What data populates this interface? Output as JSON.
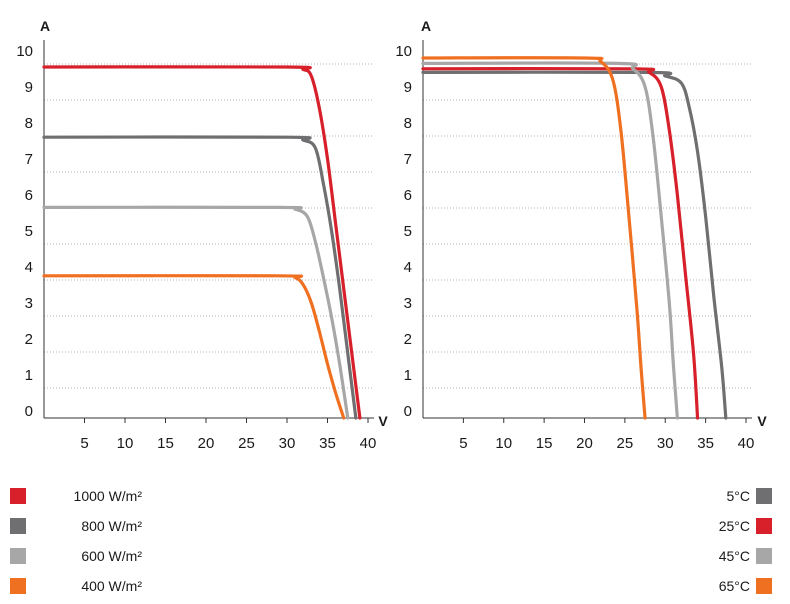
{
  "chart_data": [
    {
      "type": "line",
      "ylabel": "A",
      "xlabel": "V",
      "xlim": [
        0,
        40
      ],
      "ylim": [
        0,
        10
      ],
      "x_ticks": [
        "5",
        "10",
        "15",
        "20",
        "25",
        "30",
        "35",
        "40"
      ],
      "y_ticks": [
        "10",
        "9",
        "8",
        "7",
        "6",
        "5",
        "4",
        "3",
        "2",
        "1",
        "0"
      ],
      "grid": "horizontal dotted",
      "series": [
        {
          "name": "1000 W/m²",
          "color": "#d7202a",
          "points": [
            [
              0,
              9.75
            ],
            [
              30,
              9.75
            ],
            [
              32,
              9.68
            ],
            [
              33,
              9.5
            ],
            [
              34,
              8.6
            ],
            [
              35,
              7.2
            ],
            [
              36,
              5.4
            ],
            [
              37,
              3.6
            ],
            [
              38,
              1.8
            ],
            [
              39,
              0
            ]
          ]
        },
        {
          "name": "800 W/m²",
          "color": "#6f6f71",
          "points": [
            [
              0,
              7.8
            ],
            [
              30,
              7.8
            ],
            [
              32,
              7.72
            ],
            [
              33.5,
              7.5
            ],
            [
              34.5,
              6.5
            ],
            [
              35.5,
              5.2
            ],
            [
              36.5,
              3.6
            ],
            [
              37.5,
              1.8
            ],
            [
              38.5,
              0
            ]
          ]
        },
        {
          "name": "600 W/m²",
          "color": "#a7a7a8",
          "points": [
            [
              0,
              5.85
            ],
            [
              29,
              5.85
            ],
            [
              31,
              5.8
            ],
            [
              32.5,
              5.6
            ],
            [
              33.5,
              4.9
            ],
            [
              34.5,
              3.9
            ],
            [
              35.5,
              2.8
            ],
            [
              36.5,
              1.5
            ],
            [
              37.5,
              0
            ]
          ]
        },
        {
          "name": "400 W/m²",
          "color": "#f07022",
          "points": [
            [
              0,
              3.95
            ],
            [
              29,
              3.95
            ],
            [
              31,
              3.9
            ],
            [
              32,
              3.7
            ],
            [
              33,
              3.2
            ],
            [
              34,
              2.4
            ],
            [
              35,
              1.5
            ],
            [
              36,
              0.7
            ],
            [
              37,
              0
            ]
          ]
        }
      ]
    },
    {
      "type": "line",
      "ylabel": "A",
      "xlabel": "V",
      "xlim": [
        0,
        40
      ],
      "ylim": [
        0,
        10
      ],
      "x_ticks": [
        "5",
        "10",
        "15",
        "20",
        "25",
        "30",
        "35",
        "40"
      ],
      "y_ticks": [
        "10",
        "9",
        "8",
        "7",
        "6",
        "5",
        "4",
        "3",
        "2",
        "1",
        "0"
      ],
      "grid": "horizontal dotted",
      "series": [
        {
          "name": "5°C",
          "color": "#6f6f71",
          "points": [
            [
              0,
              9.6
            ],
            [
              28,
              9.6
            ],
            [
              30,
              9.5
            ],
            [
              32,
              9.3
            ],
            [
              33,
              8.6
            ],
            [
              34,
              7.4
            ],
            [
              35,
              5.6
            ],
            [
              36,
              3.4
            ],
            [
              37,
              1.4
            ],
            [
              37.5,
              0
            ]
          ]
        },
        {
          "name": "25°C",
          "color": "#d7202a",
          "points": [
            [
              0,
              9.7
            ],
            [
              26,
              9.7
            ],
            [
              28,
              9.6
            ],
            [
              29.5,
              9.2
            ],
            [
              30.5,
              8.0
            ],
            [
              31.5,
              6.2
            ],
            [
              32.5,
              4.0
            ],
            [
              33.5,
              1.8
            ],
            [
              34,
              0
            ]
          ]
        },
        {
          "name": "45°C",
          "color": "#a7a7a8",
          "points": [
            [
              0,
              9.85
            ],
            [
              24,
              9.85
            ],
            [
              26,
              9.7
            ],
            [
              27.5,
              9.2
            ],
            [
              28.5,
              7.8
            ],
            [
              29.5,
              5.6
            ],
            [
              30.5,
              3.2
            ],
            [
              31,
              1.5
            ],
            [
              31.5,
              0
            ]
          ]
        },
        {
          "name": "65°C",
          "color": "#f07022",
          "points": [
            [
              0,
              10.0
            ],
            [
              20,
              10.0
            ],
            [
              22,
              9.9
            ],
            [
              23.5,
              9.4
            ],
            [
              24.5,
              8.0
            ],
            [
              25.5,
              5.6
            ],
            [
              26.5,
              3.0
            ],
            [
              27,
              1.4
            ],
            [
              27.5,
              0
            ]
          ]
        }
      ]
    }
  ],
  "legend_left": [
    {
      "label": "1000 W/m²",
      "color": "#d7202a"
    },
    {
      "label": "800 W/m²",
      "color": "#6f6f71"
    },
    {
      "label": "600 W/m²",
      "color": "#a7a7a8"
    },
    {
      "label": "400 W/m²",
      "color": "#f07022"
    }
  ],
  "legend_right": [
    {
      "label": "5°C",
      "color": "#6f6f71"
    },
    {
      "label": "25°C",
      "color": "#d7202a"
    },
    {
      "label": "45°C",
      "color": "#a7a7a8"
    },
    {
      "label": "65°C",
      "color": "#f07022"
    }
  ]
}
